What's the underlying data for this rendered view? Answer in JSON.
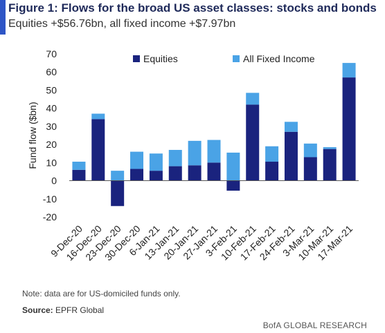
{
  "header": {
    "title": "Figure 1: Flows for the broad US asset classes: stocks and bonds",
    "subtitle": "Equities +$56.76bn, all fixed income +$7.97bn"
  },
  "footer": {
    "note": "Note: data are for US-domiciled funds only.",
    "source_label": "Source:",
    "source_value": "EPFR Global",
    "brand": "BofA GLOBAL RESEARCH"
  },
  "colors": {
    "accent": "#2e55c6",
    "equities": "#1a237e",
    "fixed_income": "#4aa3e6"
  },
  "chart_data": {
    "type": "bar",
    "stacked": true,
    "categories": [
      "9-Dec-20",
      "16-Dec-20",
      "23-Dec-20",
      "30-Dec-20",
      "6-Jan-21",
      "13-Jan-21",
      "20-Jan-21",
      "27-Jan-21",
      "3-Feb-21",
      "10-Feb-21",
      "17-Feb-21",
      "24-Feb-21",
      "3-Mar-21",
      "10-Mar-21",
      "17-Mar-21"
    ],
    "series": [
      {
        "name": "Equities",
        "values": [
          6,
          34,
          -14,
          6.5,
          5.5,
          8,
          8.5,
          10,
          -5.5,
          42,
          10.5,
          27,
          13,
          17.5,
          57
        ]
      },
      {
        "name": "All Fixed Income",
        "values": [
          4.5,
          3,
          5.5,
          9.5,
          9.5,
          9,
          13.5,
          12.5,
          15.5,
          6.5,
          8.5,
          5.5,
          7.5,
          1,
          8
        ]
      }
    ],
    "ylabel": "Fund flow  ($bn)",
    "xlabel": "",
    "ylim": [
      -20,
      70
    ],
    "yticks": [
      -20,
      -10,
      0,
      10,
      20,
      30,
      40,
      50,
      60,
      70
    ],
    "grid": false,
    "legend": "top"
  }
}
